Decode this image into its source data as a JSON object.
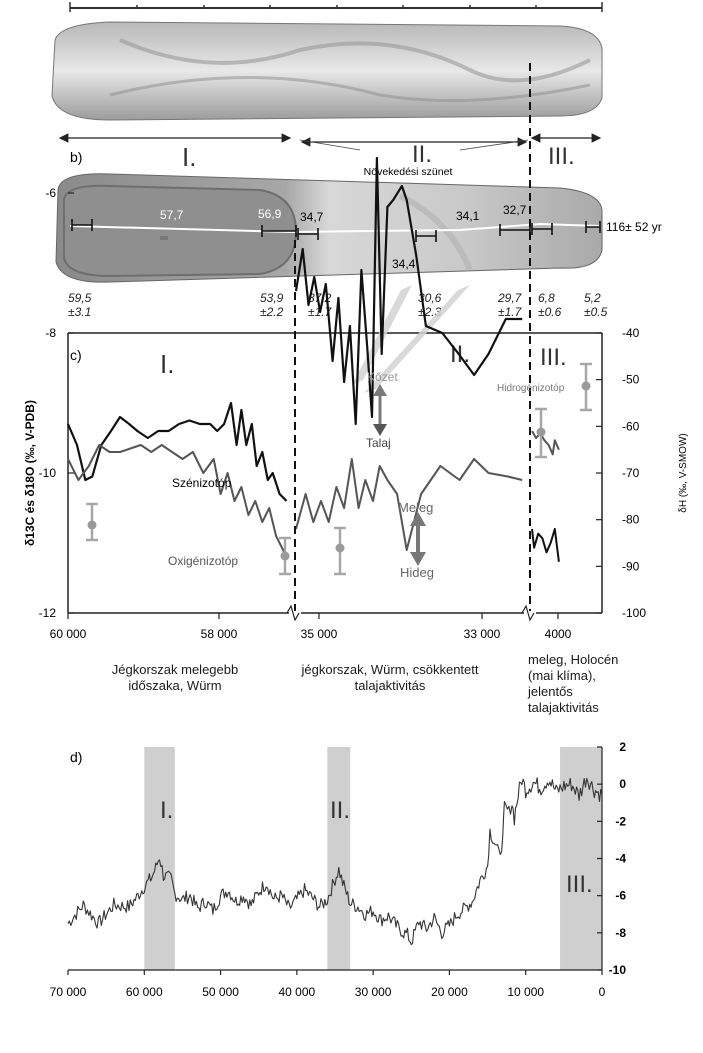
{
  "panel_b": {
    "label": "b)",
    "zone_labels": [
      "I.",
      "II.",
      "III."
    ],
    "gap_label": "Növekedési szünet",
    "stalagmite_ages": [
      "57,7",
      "56,9",
      "34,7",
      "34,1",
      "32,7",
      "34,4"
    ],
    "growth_rate": "116± 52 yr",
    "dates": [
      {
        "age": "59,5",
        "err": "±3.1"
      },
      {
        "age": "53,9",
        "err": "±2.2"
      },
      {
        "age": "37,2",
        "err": "±1.7"
      },
      {
        "age": "30,6",
        "err": "±2.3"
      },
      {
        "age": "29,7",
        "err": "±1.7"
      },
      {
        "age": "6,8",
        "err": "±0.6"
      },
      {
        "age": "5,2",
        "err": "±0.5"
      }
    ]
  },
  "panel_c": {
    "label": "c)",
    "zone_labels": [
      "I.",
      "II.",
      "III."
    ],
    "annotations": {
      "carbon": "Szénizotóp",
      "oxygen": "Oxigénizotóp",
      "hydrogen": "Hidrogénizotóp",
      "rock": "Kőzet",
      "soil": "Talaj",
      "warm": "Meleg",
      "cold": "Hideg"
    },
    "captions": [
      "Jégkorszak melegebb időszaka, Würm",
      "jégkorszak, Würm, csökkentett talajaktivitás",
      "meleg, Holocén (mai klíma), jelentős talajaktivitás"
    ],
    "colors": {
      "carbon": "#111111",
      "oxygen": "#555555",
      "hydrogen": "#9a9a9a",
      "arrow": "#777777"
    }
  },
  "panel_d": {
    "label": "d)",
    "zone_labels": [
      "I.",
      "II.",
      "III."
    ],
    "shade_color": "#cfcfcf"
  },
  "chart_data": [
    {
      "type": "line",
      "id": "c",
      "xlabel": "",
      "ylabel": "δ13C és δ18O (‰, V-PDB)",
      "y2label": "δH (‰, V-SMOW)",
      "ylim": [
        -12,
        -5
      ],
      "yticks": [
        -12,
        -10,
        -8,
        -6
      ],
      "y2lim": [
        -100,
        -40
      ],
      "y2ticks": [
        -100,
        -90,
        -80,
        -70,
        -60,
        -50,
        -40
      ],
      "xtick_labels": [
        "60 000",
        "58 000",
        "35 000",
        "33 000",
        "4000"
      ],
      "broken_axis": true,
      "segments": [
        {
          "name": "I.",
          "x_range": [
            60000,
            56800
          ]
        },
        {
          "name": "II.",
          "x_range": [
            35000,
            32600
          ]
        },
        {
          "name": "III.",
          "x_range": [
            4200,
            2800
          ]
        }
      ],
      "series": [
        {
          "key": "carbon",
          "points": [
            [
              60000,
              -9.3
            ],
            [
              59870,
              -9.6
            ],
            [
              59750,
              -10.1
            ],
            [
              59650,
              -10.05
            ],
            [
              59520,
              -9.6
            ],
            [
              59380,
              -9.4
            ],
            [
              59250,
              -9.2
            ],
            [
              59120,
              -9.3
            ],
            [
              59000,
              -9.4
            ],
            [
              58850,
              -9.5
            ],
            [
              58700,
              -9.4
            ],
            [
              58550,
              -9.4
            ],
            [
              58400,
              -9.3
            ],
            [
              58250,
              -9.25
            ],
            [
              58100,
              -9.3
            ],
            [
              57950,
              -9.3
            ],
            [
              57850,
              -9.4
            ],
            [
              57750,
              -9.3
            ],
            [
              57650,
              -9.0
            ],
            [
              57570,
              -9.6
            ],
            [
              57500,
              -9.1
            ],
            [
              57430,
              -9.6
            ],
            [
              57350,
              -9.3
            ],
            [
              57280,
              -9.9
            ],
            [
              57200,
              -9.7
            ],
            [
              57120,
              -10.1
            ],
            [
              57050,
              -10.0
            ],
            [
              56950,
              -10.3
            ],
            [
              56850,
              -10.4
            ],
            [
              35000,
              -7.4
            ],
            [
              34930,
              -6.8
            ],
            [
              34870,
              -7.6
            ],
            [
              34810,
              -7.2
            ],
            [
              34750,
              -7.7
            ],
            [
              34690,
              -7.3
            ],
            [
              34620,
              -8.4
            ],
            [
              34560,
              -7.5
            ],
            [
              34500,
              -8.7
            ],
            [
              34440,
              -7.9
            ],
            [
              34380,
              -9.3
            ],
            [
              34320,
              -7.1
            ],
            [
              34260,
              -8.2
            ],
            [
              34210,
              -9.2
            ],
            [
              34160,
              -5.5
            ],
            [
              34110,
              -8.3
            ],
            [
              34050,
              -6.2
            ],
            [
              33990,
              -6.1
            ],
            [
              33900,
              -5.9
            ],
            [
              33850,
              -6.1
            ],
            [
              33750,
              -6.9
            ],
            [
              33650,
              -7.9
            ],
            [
              33480,
              -8.0
            ],
            [
              33310,
              -8.3
            ],
            [
              33150,
              -8.6
            ],
            [
              33000,
              -8.3
            ],
            [
              32820,
              -7.8
            ],
            [
              32650,
              -7.8
            ]
          ]
        },
        {
          "key": "oxygen",
          "points": [
            [
              60000,
              -9.8
            ],
            [
              59850,
              -10.1
            ],
            [
              59700,
              -9.9
            ],
            [
              59550,
              -9.6
            ],
            [
              59400,
              -9.7
            ],
            [
              59250,
              -9.7
            ],
            [
              59100,
              -9.65
            ],
            [
              58950,
              -9.6
            ],
            [
              58800,
              -9.7
            ],
            [
              58650,
              -9.6
            ],
            [
              58500,
              -9.7
            ],
            [
              58350,
              -9.8
            ],
            [
              58200,
              -9.7
            ],
            [
              58050,
              -10.0
            ],
            [
              57900,
              -9.8
            ],
            [
              57800,
              -10.3
            ],
            [
              57700,
              -10.0
            ],
            [
              57600,
              -10.4
            ],
            [
              57500,
              -10.2
            ],
            [
              57400,
              -10.6
            ],
            [
              57300,
              -10.4
            ],
            [
              57200,
              -10.7
            ],
            [
              57100,
              -10.5
            ],
            [
              57000,
              -10.9
            ],
            [
              56900,
              -11.1
            ],
            [
              56850,
              -11.2
            ],
            [
              35000,
              -10.8
            ],
            [
              34900,
              -10.3
            ],
            [
              34820,
              -10.7
            ],
            [
              34740,
              -10.4
            ],
            [
              34660,
              -10.7
            ],
            [
              34580,
              -10.2
            ],
            [
              34500,
              -10.5
            ],
            [
              34420,
              -9.8
            ],
            [
              34350,
              -10.5
            ],
            [
              34280,
              -10.1
            ],
            [
              34200,
              -10.4
            ],
            [
              34130,
              -9.9
            ],
            [
              34050,
              -10.1
            ],
            [
              33950,
              -10.3
            ],
            [
              33850,
              -11.1
            ],
            [
              33700,
              -10.3
            ],
            [
              33500,
              -9.9
            ],
            [
              33300,
              -10.1
            ],
            [
              33150,
              -9.8
            ],
            [
              33000,
              -10.0
            ],
            [
              32800,
              -10.05
            ],
            [
              32650,
              -10.1
            ]
          ]
        },
        {
          "key": "hydrogen",
          "points": [
            [
              4200,
              -82
            ],
            [
              4150,
              -86
            ],
            [
              4050,
              -83
            ],
            [
              3950,
              -84
            ],
            [
              3850,
              -87
            ],
            [
              3750,
              -85
            ],
            [
              3650,
              -82
            ],
            [
              3550,
              -89
            ]
          ]
        },
        {
          "key": "hydrogen-holocene",
          "points": [
            [
              4200,
              -61
            ],
            [
              4100,
              -62.5
            ],
            [
              4000,
              -61.5
            ],
            [
              3900,
              -63
            ],
            [
              3800,
              -64
            ],
            [
              3700,
              -66
            ],
            [
              3650,
              -63
            ],
            [
              3550,
              -65
            ]
          ]
        }
      ]
    },
    {
      "type": "line",
      "id": "d",
      "xlabel": "",
      "ylabel": "",
      "xlim": [
        70000,
        0
      ],
      "ylim": [
        -10,
        2
      ],
      "xticks": [
        70000,
        60000,
        50000,
        40000,
        30000,
        20000,
        10000,
        0
      ],
      "xtick_labels": [
        "70 000",
        "60 000",
        "50 000",
        "40 000",
        "30 000",
        "20 000",
        "10 000",
        "0"
      ],
      "yticks": [
        2,
        0,
        -2,
        -4,
        -6,
        -8,
        -10
      ],
      "shaded_intervals": [
        [
          60000,
          56000
        ],
        [
          36000,
          33000
        ],
        [
          5500,
          0
        ]
      ],
      "series": [
        {
          "key": "record",
          "points": [
            [
              70000,
              -7.5
            ],
            [
              68000,
              -6.5
            ],
            [
              66000,
              -7.5
            ],
            [
              64000,
              -6.5
            ],
            [
              62000,
              -6.6
            ],
            [
              61000,
              -6.1
            ],
            [
              60000,
              -5.5
            ],
            [
              59000,
              -5.0
            ],
            [
              58500,
              -4.5
            ],
            [
              58000,
              -3.9
            ],
            [
              57500,
              -4.9
            ],
            [
              56500,
              -5.1
            ],
            [
              56000,
              -5.9
            ],
            [
              55000,
              -6.2
            ],
            [
              54000,
              -6.0
            ],
            [
              53000,
              -6.7
            ],
            [
              52000,
              -6.3
            ],
            [
              51000,
              -6.8
            ],
            [
              50000,
              -6.0
            ],
            [
              49000,
              -5.7
            ],
            [
              48000,
              -6.3
            ],
            [
              47000,
              -6.0
            ],
            [
              46000,
              -6.5
            ],
            [
              45000,
              -5.8
            ],
            [
              44000,
              -5.3
            ],
            [
              43000,
              -6.2
            ],
            [
              42000,
              -6.0
            ],
            [
              41000,
              -6.7
            ],
            [
              40000,
              -6.2
            ],
            [
              39000,
              -5.7
            ],
            [
              38000,
              -6.1
            ],
            [
              37000,
              -6.6
            ],
            [
              36000,
              -6.2
            ],
            [
              35000,
              -5.1
            ],
            [
              34500,
              -4.6
            ],
            [
              34000,
              -5.3
            ],
            [
              33000,
              -6.4
            ],
            [
              32000,
              -6.6
            ],
            [
              31000,
              -7.0
            ],
            [
              30000,
              -6.8
            ],
            [
              29000,
              -7.3
            ],
            [
              28000,
              -7.1
            ],
            [
              27000,
              -7.6
            ],
            [
              26000,
              -8.0
            ],
            [
              25500,
              -8.1
            ],
            [
              25000,
              -8.5
            ],
            [
              24000,
              -7.4
            ],
            [
              23000,
              -7.8
            ],
            [
              22000,
              -7.2
            ],
            [
              21000,
              -8.0
            ],
            [
              20000,
              -7.6
            ],
            [
              19000,
              -7.0
            ],
            [
              18000,
              -6.7
            ],
            [
              17000,
              -6.3
            ],
            [
              16000,
              -5.2
            ],
            [
              15000,
              -4.4
            ],
            [
              14700,
              -2.5
            ],
            [
              14000,
              -3.2
            ],
            [
              13500,
              -3.8
            ],
            [
              13000,
              -3.0
            ],
            [
              12800,
              -1.2
            ],
            [
              12200,
              -1.5
            ],
            [
              11800,
              -1.0
            ],
            [
              11500,
              -1.8
            ],
            [
              11000,
              -0.6
            ],
            [
              10500,
              0.3
            ],
            [
              10000,
              -0.3
            ],
            [
              9000,
              0.1
            ],
            [
              8000,
              -0.2
            ],
            [
              7000,
              0.3
            ],
            [
              6000,
              -0.4
            ],
            [
              5000,
              -0.1
            ],
            [
              4000,
              0.0
            ],
            [
              3000,
              -0.6
            ],
            [
              2000,
              0.4
            ],
            [
              1000,
              -0.3
            ],
            [
              0,
              -0.6
            ]
          ]
        }
      ]
    }
  ]
}
